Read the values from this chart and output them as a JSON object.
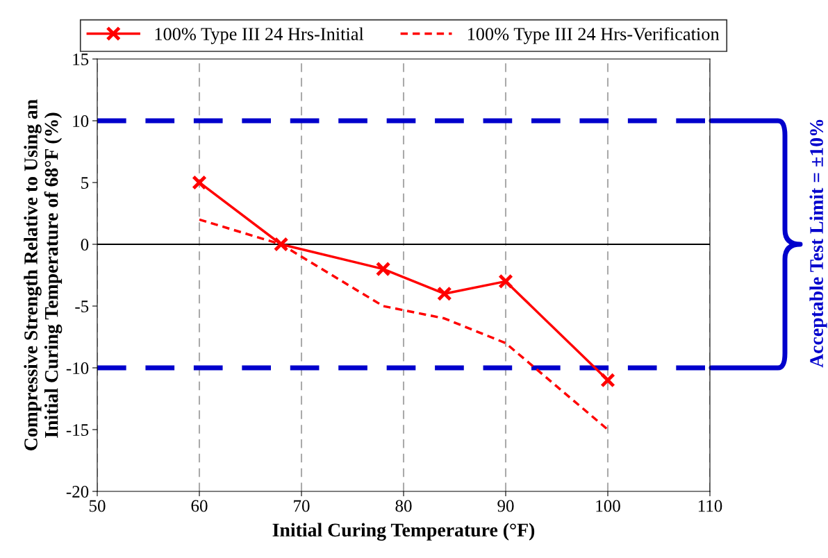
{
  "chart_data": {
    "type": "line",
    "xlabel": "Initial Curing Temperature (°F)",
    "ylabel": "Compressive Strength Relative to Using an\nInitial Curing Temperature of 68°F (%)",
    "series": [
      {
        "name": "100% Type III 24 Hrs-Initial",
        "color": "#ff0000",
        "x": [
          60,
          68,
          78,
          84,
          90,
          100
        ],
        "values": [
          5,
          0,
          -2,
          -4,
          -3,
          -11
        ],
        "marker": "cross",
        "line_style": "solid"
      },
      {
        "name": "100% Type III 24 Hrs-Verification",
        "color": "#ff0000",
        "x": [
          60,
          68,
          78,
          84,
          90,
          100
        ],
        "values": [
          2,
          0,
          -5,
          -6,
          -8,
          -15
        ],
        "marker": "none",
        "line_style": "dashed"
      }
    ],
    "xlim": [
      50,
      110
    ],
    "xticks": [
      50,
      60,
      70,
      80,
      90,
      100,
      110
    ],
    "ylim": [
      -20,
      15
    ],
    "yticks": [
      -20,
      -15,
      -10,
      -5,
      0,
      5,
      10,
      15
    ],
    "ref_lines": [
      {
        "axis": "y",
        "value": 10,
        "color": "#0000cc",
        "line_style": "dashed"
      },
      {
        "axis": "y",
        "value": -10,
        "color": "#0000cc",
        "line_style": "dashed"
      },
      {
        "axis": "y",
        "value": 0,
        "color": "#000000",
        "line_style": "solid"
      }
    ],
    "annotations": [
      "Acceptable Test Limit = ±10%"
    ],
    "grid": "x",
    "legend": "top"
  }
}
